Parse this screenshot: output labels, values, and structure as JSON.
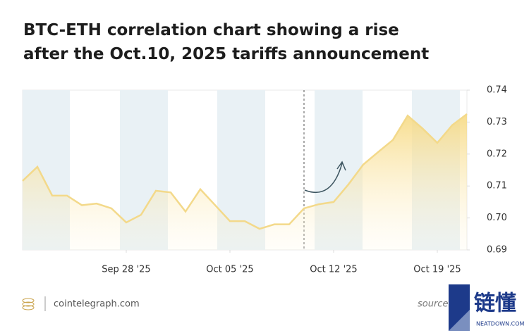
{
  "chart_data": {
    "type": "line",
    "title": "BTC-ETH correlation chart showing a rise after the Oct.10, 2025 tariffs announcement",
    "x": [
      "Sep 21 '25",
      "Sep 22 '25",
      "Sep 23 '25",
      "Sep 24 '25",
      "Sep 25 '25",
      "Sep 26 '25",
      "Sep 27 '25",
      "Sep 28 '25",
      "Sep 29 '25",
      "Sep 30 '25",
      "Oct 01 '25",
      "Oct 02 '25",
      "Oct 03 '25",
      "Oct 04 '25",
      "Oct 05 '25",
      "Oct 06 '25",
      "Oct 07 '25",
      "Oct 08 '25",
      "Oct 09 '25",
      "Oct 10 '25",
      "Oct 11 '25",
      "Oct 12 '25",
      "Oct 13 '25",
      "Oct 14 '25",
      "Oct 15 '25",
      "Oct 16 '25",
      "Oct 17 '25",
      "Oct 18 '25",
      "Oct 19 '25",
      "Oct 20 '25",
      "Oct 21 '25"
    ],
    "series": [
      {
        "name": "BTC-ETH correlation",
        "color": "#f3d98a",
        "values": [
          0.7116,
          0.716,
          0.707,
          0.707,
          0.704,
          0.7045,
          0.703,
          0.6986,
          0.701,
          0.7085,
          0.708,
          0.702,
          0.709,
          0.704,
          0.699,
          0.699,
          0.6966,
          0.698,
          0.698,
          0.703,
          0.7043,
          0.705,
          0.7105,
          0.7167,
          0.7206,
          0.7244,
          0.732,
          0.728,
          0.7235,
          0.729,
          0.7325
        ]
      }
    ],
    "xlim": [
      "Sep 21 '25",
      "Oct 21 '25"
    ],
    "xticks": [
      "Sep 28 '25",
      "Oct 05 '25",
      "Oct 12 '25",
      "Oct 19 '25"
    ],
    "ylim": [
      0.69,
      0.74
    ],
    "yticks": [
      0.69,
      {
        "value": 0.7,
        "label": "0.70"
      },
      0.71,
      0.72,
      0.73,
      0.74
    ],
    "event_line": "Oct 10 '25",
    "footer": "cointelegraph.com",
    "source": "source",
    "watermark": "链懂",
    "watermark_sub": "NEATDOWN.COM"
  }
}
